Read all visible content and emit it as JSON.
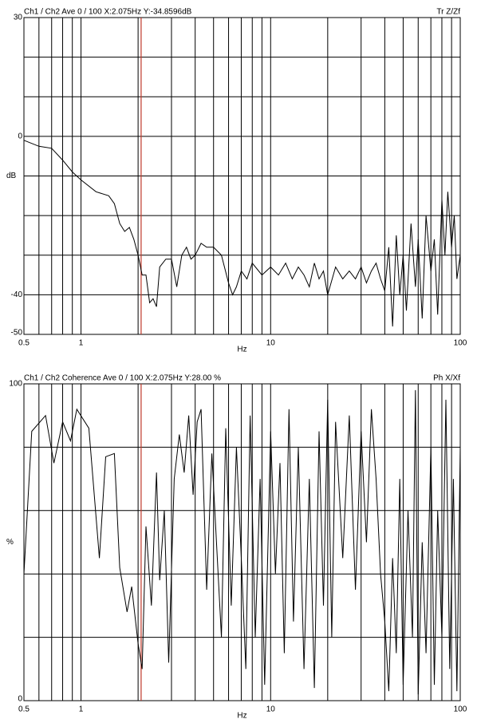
{
  "chart_data": [
    {
      "type": "line",
      "title": "Ch1 / Ch2  Ave 0 / 100  X:2.075Hz  Y:-34.8596dB",
      "subtitle": "Tr Z/Zf",
      "x_label": "Hz",
      "y_label": "dB",
      "x_log": true,
      "grid": true,
      "color": "#000000",
      "cursor": {
        "x": 2.075,
        "color": "#c0392b"
      },
      "xlim": [
        0.5,
        100
      ],
      "xticks": [
        0.5,
        1,
        10,
        100
      ],
      "xgrid": [
        0.5,
        0.6,
        0.7,
        0.8,
        0.9,
        1,
        2,
        3,
        4,
        5,
        6,
        7,
        8,
        9,
        10,
        20,
        30,
        40,
        50,
        60,
        70,
        80,
        90,
        100
      ],
      "ylim": [
        -50,
        30
      ],
      "yticks": [
        30,
        0,
        -40,
        -50
      ],
      "ygrid": [
        30,
        20,
        10,
        0,
        -10,
        -20,
        -30,
        -40,
        -50
      ],
      "series": [
        {
          "name": "Ch1 / Ch2",
          "color": "#000000",
          "x": [
            0.5,
            0.6,
            0.7,
            0.8,
            0.9,
            1.0,
            1.2,
            1.4,
            1.5,
            1.6,
            1.7,
            1.8,
            1.9,
            2.0,
            2.1,
            2.2,
            2.3,
            2.4,
            2.5,
            2.6,
            2.8,
            3.0,
            3.2,
            3.4,
            3.6,
            3.8,
            4.0,
            4.3,
            4.6,
            5.0,
            5.5,
            6.0,
            6.3,
            6.6,
            7.0,
            7.5,
            8,
            9,
            10,
            11,
            12,
            13,
            14,
            15,
            16,
            17,
            18,
            19,
            20,
            22,
            24,
            26,
            28,
            30,
            32,
            34,
            36,
            38,
            40,
            42,
            44,
            46,
            48,
            50,
            52,
            55,
            58,
            60,
            63,
            66,
            70,
            73,
            76,
            80,
            83,
            86,
            90,
            93,
            96,
            100
          ],
          "values": [
            -1,
            -2.5,
            -3,
            -6,
            -9,
            -11,
            -14,
            -15,
            -17,
            -22,
            -24,
            -23,
            -26,
            -30,
            -35,
            -35,
            -42,
            -41,
            -43,
            -33,
            -31,
            -31,
            -38,
            -30,
            -28,
            -31,
            -30,
            -27,
            -28,
            -28,
            -30,
            -37,
            -40,
            -38,
            -34,
            -36,
            -32,
            -35,
            -33,
            -35,
            -32,
            -36,
            -33,
            -35,
            -38,
            -32,
            -36,
            -34,
            -40,
            -33,
            -36,
            -34,
            -36,
            -33,
            -37,
            -34,
            -32,
            -36,
            -39,
            -28,
            -48,
            -25,
            -40,
            -30,
            -44,
            -22,
            -38,
            -26,
            -46,
            -20,
            -34,
            -26,
            -45,
            -16,
            -30,
            -14,
            -28,
            -20,
            -36,
            -30
          ]
        }
      ]
    },
    {
      "type": "line",
      "title": "Ch1 / Ch2  Coherence Ave 0 / 100  X:2.075Hz  Y:28.00 %",
      "subtitle": "Ph X/Xf",
      "x_label": "Hz",
      "y_label": "%",
      "x_log": true,
      "grid": true,
      "color": "#000000",
      "cursor": {
        "x": 2.075,
        "color": "#c0392b"
      },
      "xlim": [
        0.5,
        100
      ],
      "xticks": [
        0.5,
        1,
        10,
        100
      ],
      "xgrid": [
        0.5,
        0.6,
        0.7,
        0.8,
        0.9,
        1,
        2,
        3,
        4,
        5,
        6,
        7,
        8,
        9,
        10,
        20,
        30,
        40,
        50,
        60,
        70,
        80,
        90,
        100
      ],
      "ylim": [
        0,
        100
      ],
      "yticks": [
        100,
        0
      ],
      "ygrid": [
        100,
        80,
        60,
        40,
        20,
        0
      ],
      "series": [
        {
          "name": "Coherence",
          "color": "#000000",
          "x": [
            0.5,
            0.55,
            0.65,
            0.72,
            0.8,
            0.88,
            0.95,
            1.1,
            1.25,
            1.35,
            1.5,
            1.6,
            1.75,
            1.85,
            2.0,
            2.1,
            2.2,
            2.35,
            2.5,
            2.6,
            2.75,
            2.9,
            3.1,
            3.3,
            3.5,
            3.7,
            3.9,
            4.1,
            4.3,
            4.6,
            4.9,
            5.2,
            5.5,
            5.8,
            6.2,
            6.6,
            7.0,
            7.4,
            7.8,
            8.3,
            8.8,
            9.3,
            10,
            10.6,
            11.2,
            11.8,
            12.5,
            13.2,
            14,
            15,
            16,
            17,
            18,
            19,
            20,
            21,
            22,
            24,
            26,
            28,
            30,
            32,
            34,
            36,
            38,
            40,
            42,
            44,
            46,
            48,
            50,
            53,
            56,
            58,
            60,
            63,
            66,
            70,
            73,
            76,
            80,
            84,
            88,
            92,
            96,
            100
          ],
          "values": [
            40,
            85,
            90,
            75,
            88,
            82,
            92,
            86,
            45,
            77,
            78,
            42,
            28,
            36,
            18,
            10,
            55,
            30,
            72,
            38,
            60,
            12,
            70,
            84,
            72,
            90,
            65,
            88,
            92,
            35,
            78,
            48,
            20,
            86,
            30,
            80,
            45,
            10,
            90,
            20,
            70,
            5,
            85,
            40,
            75,
            15,
            92,
            25,
            80,
            10,
            70,
            4,
            85,
            30,
            95,
            20,
            88,
            45,
            90,
            35,
            85,
            50,
            92,
            70,
            40,
            25,
            3,
            45,
            15,
            70,
            5,
            60,
            20,
            98,
            2,
            50,
            15,
            80,
            5,
            60,
            20,
            95,
            10,
            70,
            3,
            80
          ]
        }
      ]
    }
  ]
}
